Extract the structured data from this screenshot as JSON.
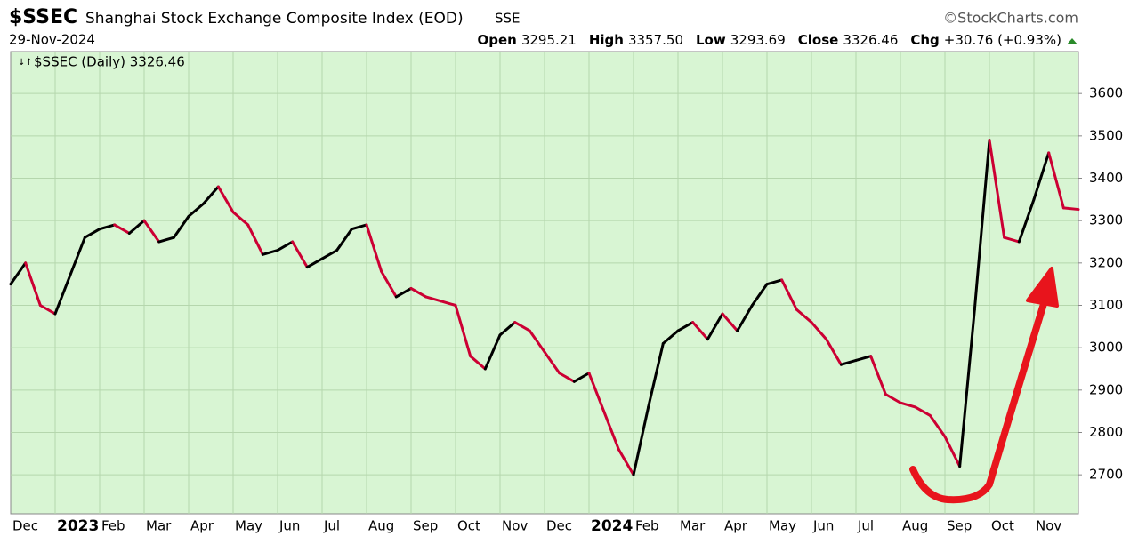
{
  "chart_data": {
    "type": "line",
    "symbol": "$SSEC",
    "title": "Shanghai Stock Exchange Composite Index (EOD)",
    "exchange": "SSE",
    "source": "©StockCharts.com",
    "date": "29-Nov-2024",
    "quote": [
      {
        "label": "Open",
        "value": "3295.21"
      },
      {
        "label": "High",
        "value": "3357.50"
      },
      {
        "label": "Low",
        "value": "3293.69"
      },
      {
        "label": "Close",
        "value": "3326.46"
      },
      {
        "label": "Chg",
        "value": "+30.76 (+0.93%)"
      }
    ],
    "categories": [
      "Dec",
      null,
      null,
      "2023",
      null,
      null,
      "Feb",
      null,
      null,
      "Mar",
      null,
      null,
      "Apr",
      null,
      null,
      "May",
      null,
      null,
      "Jun",
      null,
      null,
      "Jul",
      null,
      null,
      "Aug",
      null,
      null,
      "Sep",
      null,
      null,
      "Oct",
      null,
      null,
      "Nov",
      null,
      null,
      "Dec",
      null,
      null,
      "2024",
      null,
      null,
      "Feb",
      null,
      null,
      "Mar",
      null,
      null,
      "Apr",
      null,
      null,
      "May",
      null,
      null,
      "Jun",
      null,
      null,
      "Jul",
      null,
      null,
      "Aug",
      null,
      null,
      "Sep",
      null,
      null,
      "Oct",
      null,
      null,
      "Nov",
      null,
      null,
      null
    ],
    "series": [
      {
        "name": "$SSEC (Daily) 3326.46",
        "color": "#000000",
        "down_color": "#cc0033",
        "values": [
          3150,
          3200,
          3100,
          3080,
          3170,
          3260,
          3280,
          3290,
          3270,
          3300,
          3250,
          3260,
          3310,
          3340,
          3380,
          3320,
          3290,
          3220,
          3230,
          3250,
          3190,
          3210,
          3230,
          3280,
          3290,
          3180,
          3120,
          3140,
          3120,
          3110,
          3100,
          2980,
          2950,
          3030,
          3060,
          3040,
          2990,
          2940,
          2920,
          2940,
          2850,
          2760,
          2700,
          2860,
          3010,
          3040,
          3060,
          3020,
          3080,
          3040,
          3100,
          3150,
          3160,
          3090,
          3060,
          3020,
          2960,
          2970,
          2980,
          2890,
          2870,
          2860,
          2840,
          2790,
          2720,
          3090,
          3490,
          3260,
          3250,
          3350,
          3460,
          3330,
          3326.46
        ]
      }
    ],
    "ylim": [
      2608,
      3699
    ],
    "yticks": [
      2700,
      2800,
      2900,
      3000,
      3100,
      3200,
      3300,
      3400,
      3500,
      3600
    ],
    "grid": true,
    "background": "#d8f5d3"
  }
}
